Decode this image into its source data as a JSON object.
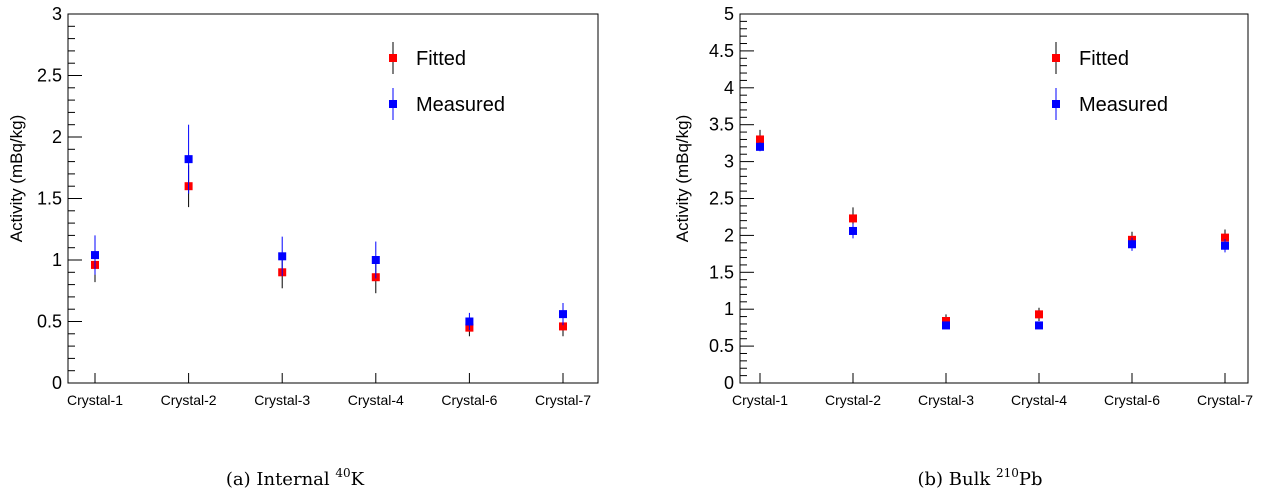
{
  "chart_data": [
    {
      "type": "scatter",
      "panel": "a",
      "ylabel": "Activity (mBq/kg)",
      "categories": [
        "Crystal-1",
        "Crystal-2",
        "Crystal-3",
        "Crystal-4",
        "Crystal-6",
        "Crystal-7"
      ],
      "ylim": [
        0,
        3
      ],
      "yticks": [
        "0",
        "0.5",
        "1",
        "1.5",
        "2",
        "2.5",
        "3"
      ],
      "caption_prefix": "(a) Internal ",
      "caption_sup": "40",
      "caption_suffix": "K",
      "legend_position": "top-right",
      "series": [
        {
          "name": "Fitted",
          "color": "#ff0000",
          "values": [
            0.96,
            1.6,
            0.9,
            0.86,
            0.45,
            0.46
          ],
          "errors": [
            0.14,
            0.17,
            0.13,
            0.13,
            0.07,
            0.08
          ]
        },
        {
          "name": "Measured",
          "color": "#0000ff",
          "values": [
            1.04,
            1.82,
            1.03,
            1.0,
            0.5,
            0.56
          ],
          "errors": [
            0.16,
            0.28,
            0.16,
            0.15,
            0.07,
            0.09
          ]
        }
      ]
    },
    {
      "type": "scatter",
      "panel": "b",
      "ylabel": "Activity (mBq/kg)",
      "categories": [
        "Crystal-1",
        "Crystal-2",
        "Crystal-3",
        "Crystal-4",
        "Crystal-6",
        "Crystal-7"
      ],
      "ylim": [
        0,
        5
      ],
      "yticks": [
        "0",
        "0.5",
        "1",
        "1.5",
        "2",
        "2.5",
        "3",
        "3.5",
        "4",
        "4.5",
        "5"
      ],
      "caption_prefix": "(b) Bulk ",
      "caption_sup": "210",
      "caption_suffix": "Pb",
      "legend_position": "top-right",
      "series": [
        {
          "name": "Fitted",
          "color": "#ff0000",
          "values": [
            3.3,
            2.23,
            0.84,
            0.93,
            1.94,
            1.97
          ],
          "errors": [
            0.13,
            0.15,
            0.09,
            0.09,
            0.11,
            0.11
          ]
        },
        {
          "name": "Measured",
          "color": "#0000ff",
          "values": [
            3.2,
            2.06,
            0.78,
            0.78,
            1.88,
            1.86
          ],
          "errors": [
            0.06,
            0.1,
            0.04,
            0.04,
            0.09,
            0.09
          ]
        }
      ]
    }
  ]
}
